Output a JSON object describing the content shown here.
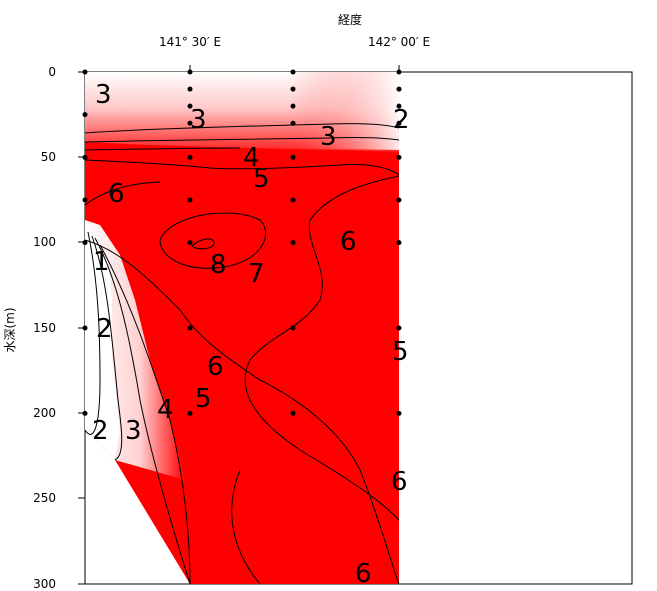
{
  "chart_data": {
    "type": "heatmap",
    "title": "",
    "xlabel": "経度",
    "ylabel": "水深(m)",
    "x_ticks": [
      "141° 30′ E",
      "142° 00′ E"
    ],
    "y_ticks": [
      0,
      50,
      100,
      150,
      200,
      250,
      300
    ],
    "ylim": [
      0,
      300
    ],
    "y_inverted": true,
    "color_low": "#ffffff",
    "color_high": "#ff0000",
    "sample_points": [
      {
        "station": 1,
        "depth": 0
      },
      {
        "station": 1,
        "depth": 25
      },
      {
        "station": 1,
        "depth": 50
      },
      {
        "station": 1,
        "depth": 75
      },
      {
        "station": 1,
        "depth": 100
      },
      {
        "station": 1,
        "depth": 150
      },
      {
        "station": 1,
        "depth": 200
      },
      {
        "station": 2,
        "depth": 0
      },
      {
        "station": 2,
        "depth": 10
      },
      {
        "station": 2,
        "depth": 20
      },
      {
        "station": 2,
        "depth": 30
      },
      {
        "station": 2,
        "depth": 50
      },
      {
        "station": 2,
        "depth": 75
      },
      {
        "station": 2,
        "depth": 100
      },
      {
        "station": 2,
        "depth": 150
      },
      {
        "station": 2,
        "depth": 200
      },
      {
        "station": 3,
        "depth": 0
      },
      {
        "station": 3,
        "depth": 10
      },
      {
        "station": 3,
        "depth": 20
      },
      {
        "station": 3,
        "depth": 30
      },
      {
        "station": 3,
        "depth": 50
      },
      {
        "station": 3,
        "depth": 75
      },
      {
        "station": 3,
        "depth": 100
      },
      {
        "station": 3,
        "depth": 150
      },
      {
        "station": 3,
        "depth": 200
      },
      {
        "station": 4,
        "depth": 0
      },
      {
        "station": 4,
        "depth": 10
      },
      {
        "station": 4,
        "depth": 20
      },
      {
        "station": 4,
        "depth": 30
      },
      {
        "station": 4,
        "depth": 50
      },
      {
        "station": 4,
        "depth": 75
      },
      {
        "station": 4,
        "depth": 100
      },
      {
        "station": 4,
        "depth": 150
      },
      {
        "station": 4,
        "depth": 200
      }
    ],
    "contour_labels": [
      "3",
      "3",
      "3",
      "2",
      "4",
      "5",
      "6",
      "6",
      "8",
      "7",
      "1",
      "2",
      "6",
      "5",
      "4",
      "3",
      "2",
      "5",
      "6",
      "6"
    ]
  }
}
